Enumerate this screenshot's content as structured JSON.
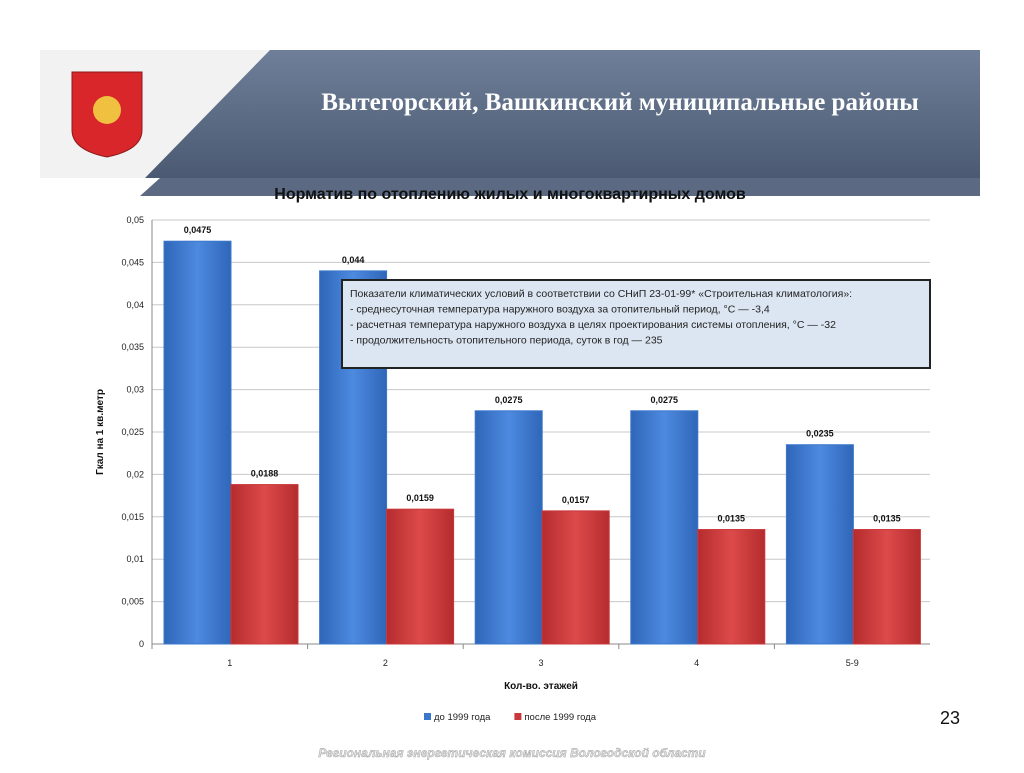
{
  "header": {
    "title": "Вытегорский, Вашкинский муниципальные районы"
  },
  "page_number": "23",
  "footer": "Региональная энергетическая комиссия Вологодской области",
  "chart_data": {
    "type": "bar",
    "title": "Норматив по отоплению жилых и многоквартирных домов",
    "y_label": "Гкал на 1 кв.метр",
    "x_label": "Кол-во. этажей",
    "categories": [
      "1",
      "2",
      "3",
      "4",
      "5-9"
    ],
    "series": [
      {
        "name": "до 1999 года",
        "color": "#3b78cc",
        "values": [
          0.0475,
          0.044,
          0.0275,
          0.0275,
          0.0235
        ],
        "value_labels": [
          "0,0475",
          "0,044",
          "0,0275",
          "0,0275",
          "0,0235"
        ]
      },
      {
        "name": "после 1999 года",
        "color": "#c9383a",
        "values": [
          0.0188,
          0.0159,
          0.0157,
          0.0135,
          0.0135
        ],
        "value_labels": [
          "0,0188",
          "0,0159",
          "0,0157",
          "0,0135",
          "0,0135"
        ]
      }
    ],
    "ylim": [
      0,
      0.05
    ],
    "yticks": [
      0,
      {
        "value": 0.005,
        "label": "0,005"
      },
      {
        "value": 0.01,
        "label": "0,01"
      },
      {
        "value": 0.015,
        "label": "0,015"
      },
      {
        "value": 0.02,
        "label": "0,02"
      },
      {
        "value": 0.025,
        "label": "0,025"
      },
      {
        "value": 0.03,
        "label": "0,03"
      },
      {
        "value": 0.035,
        "label": "0,035"
      },
      {
        "value": 0.04,
        "label": "0,04"
      },
      {
        "value": 0.045,
        "label": "0,045"
      },
      {
        "value": 0.05,
        "label": "0,05"
      }
    ],
    "grid": true,
    "legend": "bottom",
    "annotation": [
      "Показатели климатических условий в соответствии со СНиП 23-01-99* «Строительная климатология»:",
      "- среднесуточная температура наружного воздуха за отопительный период, °С — -3,4",
      "- расчетная температура наружного воздуха в целях проектирования системы отопления, °С — -32",
      "- продолжительность отопительного периода, суток в год — 235"
    ]
  }
}
